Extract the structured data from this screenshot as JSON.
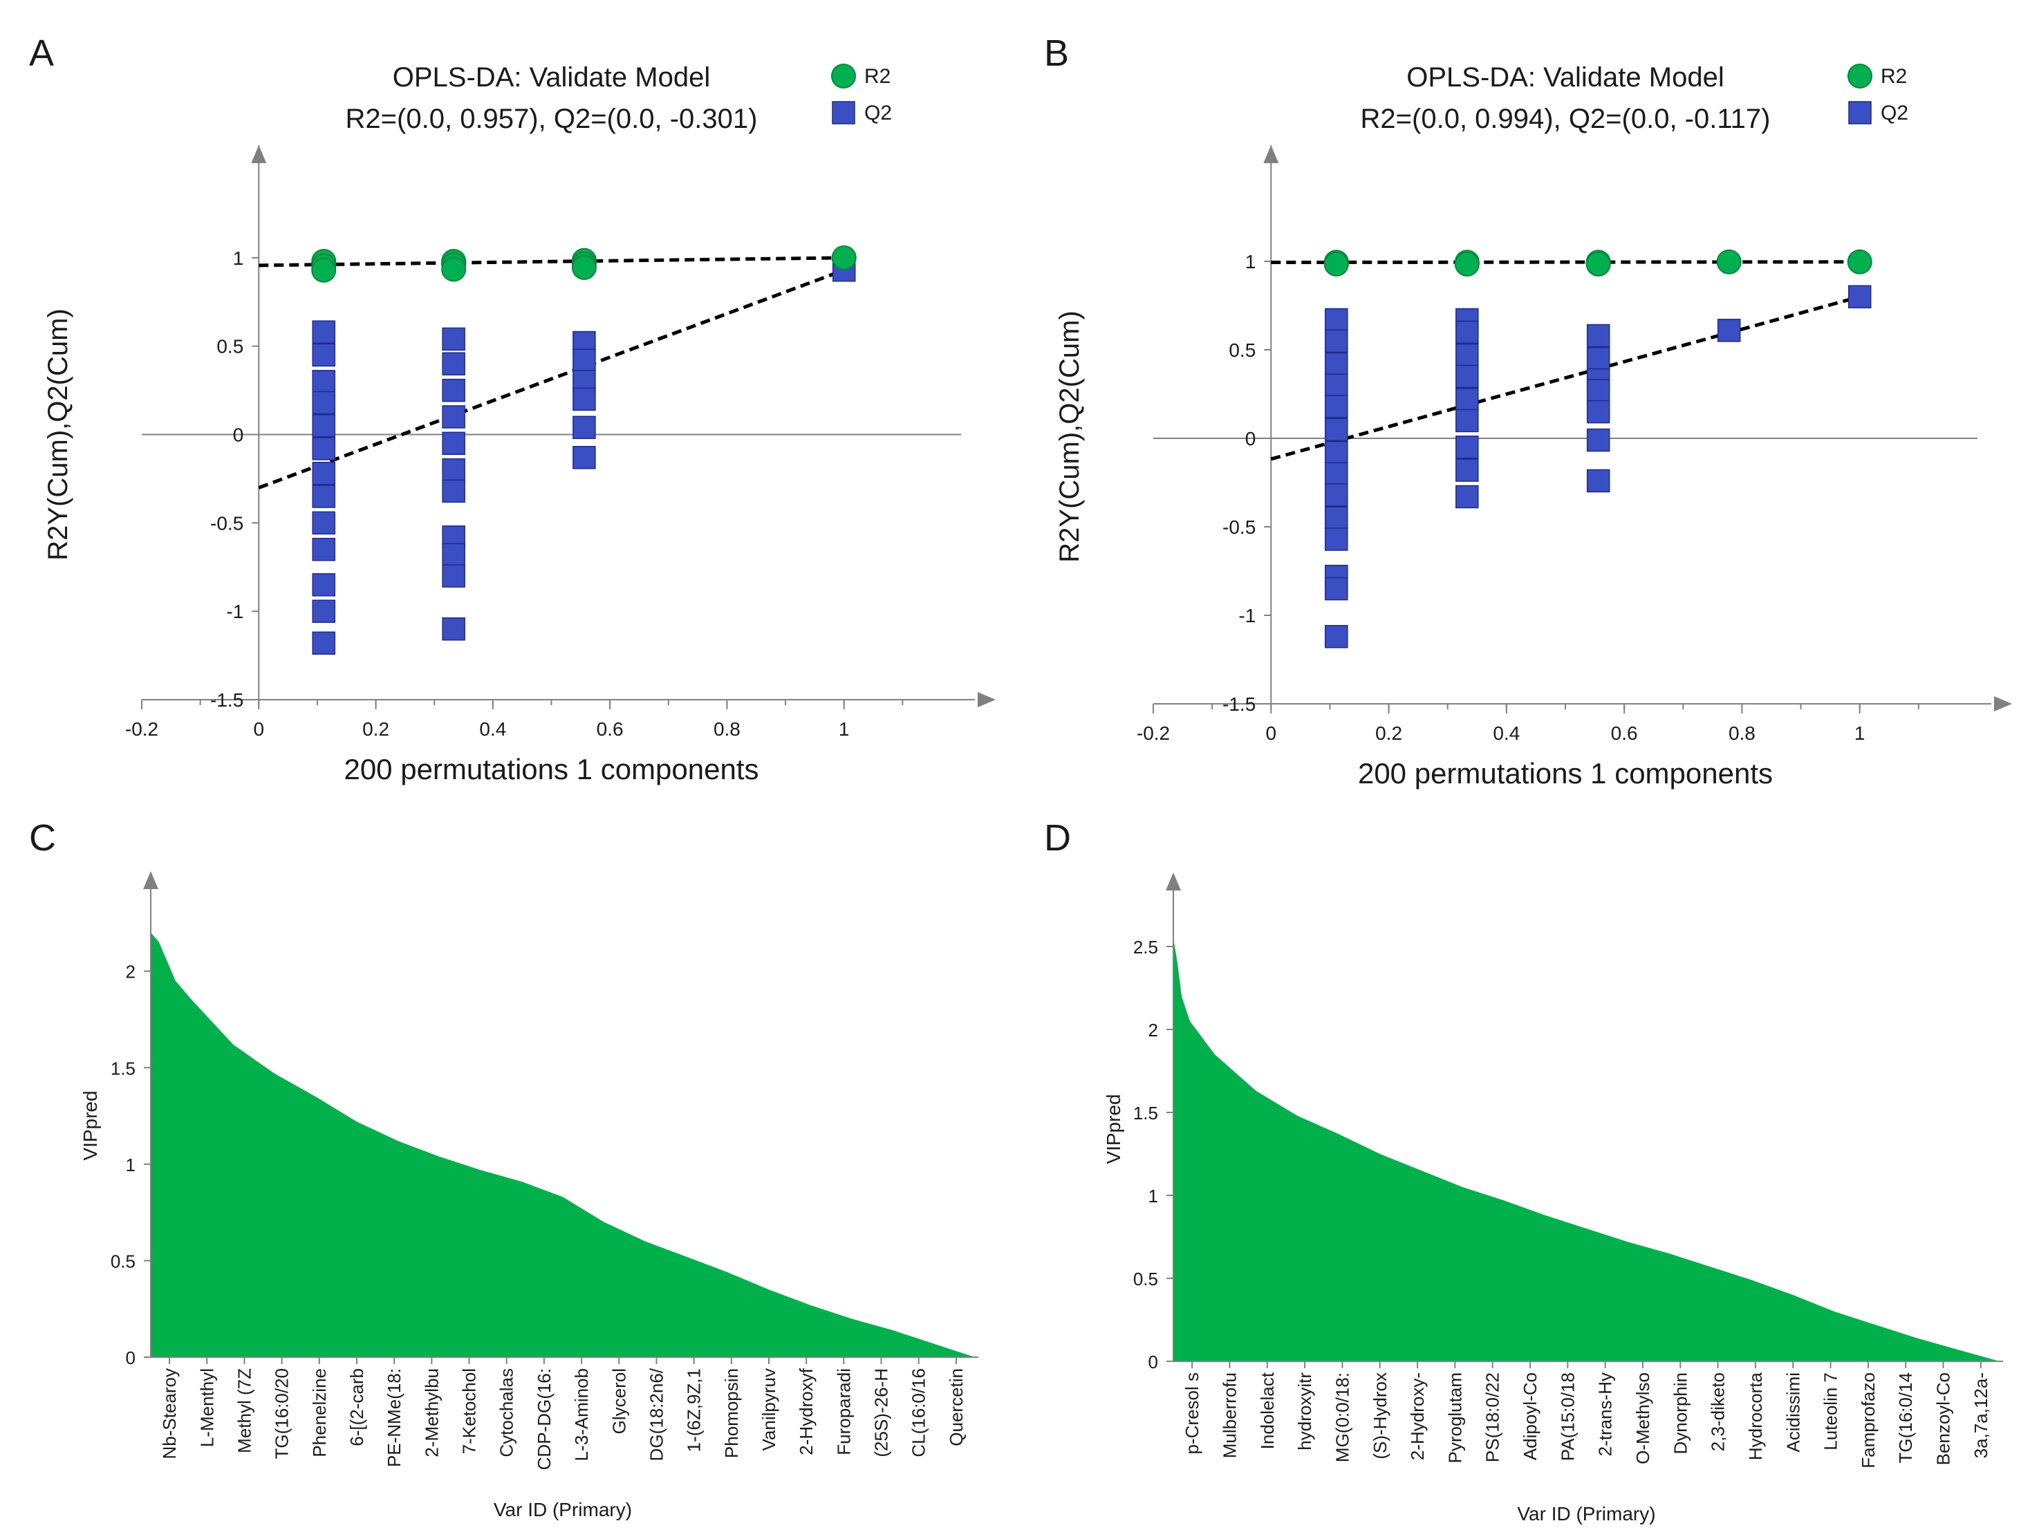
{
  "colors": {
    "r2_green": "#00b050",
    "r2_stroke": "#008a3c",
    "q2_blue": "#3b4fc4",
    "q2_stroke": "#1e2a8a",
    "vip_fill": "#00b04a",
    "axis": "#808080",
    "text": "#1a1a1a"
  },
  "chart_data": [
    {
      "id": "A",
      "panel_label": "A",
      "type": "scatter",
      "title": "OPLS-DA: Validate Model",
      "subtitle": "R2=(0.0, 0.957), Q2=(0.0, -0.301)",
      "xlabel": "200 permutations 1 components",
      "ylabel": "R2Y(Cum),Q2(Cum)",
      "xlim": [
        -0.2,
        1.2
      ],
      "ylim": [
        -1.5,
        1.5
      ],
      "x_ticks": [
        -0.2,
        0,
        0.2,
        0.4,
        0.6,
        0.8,
        1
      ],
      "x_tick_labels": [
        "-0.2",
        "0",
        "0.2",
        "0.4",
        "0.6",
        "0.8",
        "1"
      ],
      "y_ticks": [
        -1.5,
        -1,
        -0.5,
        0,
        0.5,
        1
      ],
      "y_tick_labels": [
        "-1.5",
        "-1",
        "-0.5",
        "0",
        "0.5",
        "1"
      ],
      "legend": {
        "position": "top-right",
        "entries": [
          "R2",
          "Q2"
        ]
      },
      "series": [
        {
          "name": "R2",
          "marker": "circle",
          "points": [
            [
              0.111,
              0.98
            ],
            [
              0.111,
              0.955
            ],
            [
              0.111,
              0.93
            ],
            [
              0.333,
              0.98
            ],
            [
              0.333,
              0.96
            ],
            [
              0.333,
              0.935
            ],
            [
              0.556,
              0.985
            ],
            [
              0.556,
              0.965
            ],
            [
              0.556,
              0.945
            ],
            [
              1.0,
              1.0
            ]
          ]
        },
        {
          "name": "Q2",
          "marker": "square",
          "points": [
            [
              0.111,
              0.58
            ],
            [
              0.111,
              0.45
            ],
            [
              0.111,
              0.3
            ],
            [
              0.111,
              0.18
            ],
            [
              0.111,
              0.05
            ],
            [
              0.111,
              -0.08
            ],
            [
              0.111,
              -0.22
            ],
            [
              0.111,
              -0.35
            ],
            [
              0.111,
              -0.5
            ],
            [
              0.111,
              -0.65
            ],
            [
              0.111,
              -0.85
            ],
            [
              0.111,
              -1.0
            ],
            [
              0.111,
              -1.18
            ],
            [
              0.333,
              0.54
            ],
            [
              0.333,
              0.4
            ],
            [
              0.333,
              0.25
            ],
            [
              0.333,
              0.1
            ],
            [
              0.333,
              -0.05
            ],
            [
              0.333,
              -0.2
            ],
            [
              0.333,
              -0.32
            ],
            [
              0.333,
              -0.58
            ],
            [
              0.333,
              -0.68
            ],
            [
              0.333,
              -0.8
            ],
            [
              0.333,
              -1.1
            ],
            [
              0.556,
              0.52
            ],
            [
              0.556,
              0.42
            ],
            [
              0.556,
              0.3
            ],
            [
              0.556,
              0.2
            ],
            [
              0.556,
              0.04
            ],
            [
              0.556,
              -0.13
            ],
            [
              1.0,
              0.93
            ]
          ]
        }
      ],
      "trend_lines": [
        {
          "name": "R2",
          "from": [
            0,
            0.957
          ],
          "to": [
            1,
            1.0
          ]
        },
        {
          "name": "Q2",
          "from": [
            0,
            -0.301
          ],
          "to": [
            1,
            0.93
          ]
        }
      ]
    },
    {
      "id": "B",
      "panel_label": "B",
      "type": "scatter",
      "title": "OPLS-DA: Validate Model",
      "subtitle": "R2=(0.0, 0.994), Q2=(0.0, -0.117)",
      "xlabel": "200 permutations 1 components",
      "ylabel": "R2Y(Cum),Q2(Cum)",
      "xlim": [
        -0.2,
        1.2
      ],
      "ylim": [
        -1.5,
        1.5
      ],
      "x_ticks": [
        -0.2,
        0,
        0.2,
        0.4,
        0.6,
        0.8,
        1
      ],
      "x_tick_labels": [
        "-0.2",
        "0",
        "0.2",
        "0.4",
        "0.6",
        "0.8",
        "1"
      ],
      "y_ticks": [
        -1.5,
        -1,
        -0.5,
        0,
        0.5,
        1
      ],
      "y_tick_labels": [
        "-1.5",
        "-1",
        "-0.5",
        "0",
        "0.5",
        "1"
      ],
      "legend": {
        "position": "top-right",
        "entries": [
          "R2",
          "Q2"
        ]
      },
      "series": [
        {
          "name": "R2",
          "marker": "circle",
          "points": [
            [
              0.111,
              0.995
            ],
            [
              0.111,
              0.985
            ],
            [
              0.333,
              0.995
            ],
            [
              0.333,
              0.985
            ],
            [
              0.556,
              0.995
            ],
            [
              0.556,
              0.985
            ],
            [
              0.778,
              0.997
            ],
            [
              1.0,
              0.997
            ]
          ]
        },
        {
          "name": "Q2",
          "marker": "square",
          "points": [
            [
              0.111,
              0.67
            ],
            [
              0.111,
              0.55
            ],
            [
              0.111,
              0.42
            ],
            [
              0.111,
              0.3
            ],
            [
              0.111,
              0.18
            ],
            [
              0.111,
              0.05
            ],
            [
              0.111,
              -0.08
            ],
            [
              0.111,
              -0.2
            ],
            [
              0.111,
              -0.32
            ],
            [
              0.111,
              -0.45
            ],
            [
              0.111,
              -0.57
            ],
            [
              0.111,
              -0.78
            ],
            [
              0.111,
              -0.85
            ],
            [
              0.111,
              -1.12
            ],
            [
              0.333,
              0.67
            ],
            [
              0.333,
              0.6
            ],
            [
              0.333,
              0.47
            ],
            [
              0.333,
              0.35
            ],
            [
              0.333,
              0.22
            ],
            [
              0.333,
              0.1
            ],
            [
              0.333,
              -0.05
            ],
            [
              0.333,
              -0.18
            ],
            [
              0.333,
              -0.33
            ],
            [
              0.556,
              0.58
            ],
            [
              0.556,
              0.45
            ],
            [
              0.556,
              0.33
            ],
            [
              0.556,
              0.27
            ],
            [
              0.556,
              0.15
            ],
            [
              0.556,
              -0.01
            ],
            [
              0.556,
              -0.24
            ],
            [
              0.778,
              0.61
            ],
            [
              1.0,
              0.8
            ]
          ]
        }
      ],
      "trend_lines": [
        {
          "name": "R2",
          "from": [
            0,
            0.994
          ],
          "to": [
            1,
            0.997
          ]
        },
        {
          "name": "Q2",
          "from": [
            0,
            -0.117
          ],
          "to": [
            1,
            0.8
          ]
        }
      ]
    },
    {
      "id": "C",
      "panel_label": "C",
      "type": "area",
      "title": "",
      "xlabel": "Var ID (Primary)",
      "ylabel": "VIPpred",
      "ylim": [
        0,
        2.4
      ],
      "y_ticks": [
        0,
        0.5,
        1,
        1.5,
        2
      ],
      "y_tick_labels": [
        "0",
        "0.5",
        "1",
        "1.5",
        "2"
      ],
      "categories": [
        "Nb-Stearoy",
        "L-Menthyl",
        "Methyl (7Z",
        "TG(16:0/20",
        "Phenelzine",
        "6-[(2-carb",
        "PE-NMe(18:",
        "2-Methylbu",
        "7-Ketochol",
        "Cytochalas",
        "CDP-DG(16:",
        "L-3-Aminob",
        "Glycerol",
        "DG(18:2n6/",
        "1-(6Z,9Z,1",
        "Phomopsin",
        "Vanilpyruv",
        "2-Hydroxyf",
        "Furoparadi",
        "(25S)-26-H",
        "CL(16:0/16",
        "Quercetin"
      ],
      "profile": [
        [
          0,
          2.2
        ],
        [
          0.01,
          2.15
        ],
        [
          0.03,
          1.95
        ],
        [
          0.05,
          1.85
        ],
        [
          0.1,
          1.62
        ],
        [
          0.15,
          1.47
        ],
        [
          0.2,
          1.35
        ],
        [
          0.25,
          1.22
        ],
        [
          0.3,
          1.12
        ],
        [
          0.35,
          1.04
        ],
        [
          0.4,
          0.97
        ],
        [
          0.45,
          0.91
        ],
        [
          0.5,
          0.83
        ],
        [
          0.55,
          0.7
        ],
        [
          0.6,
          0.6
        ],
        [
          0.65,
          0.52
        ],
        [
          0.7,
          0.44
        ],
        [
          0.75,
          0.35
        ],
        [
          0.8,
          0.27
        ],
        [
          0.85,
          0.2
        ],
        [
          0.9,
          0.14
        ],
        [
          0.95,
          0.07
        ],
        [
          1.0,
          0.0
        ]
      ]
    },
    {
      "id": "D",
      "panel_label": "D",
      "type": "area",
      "title": "",
      "xlabel": "Var ID (Primary)",
      "ylabel": "VIPpred",
      "ylim": [
        0,
        2.8
      ],
      "y_ticks": [
        0,
        0.5,
        1,
        1.5,
        2,
        2.5
      ],
      "y_tick_labels": [
        "0",
        "0.5",
        "1",
        "1.5",
        "2",
        "2.5"
      ],
      "categories": [
        "p-Cresol s",
        "Mulberrofu",
        "Indolelact",
        "hydroxyitr",
        "MG(0:0/18:",
        "(S)-Hydrox",
        "2-Hydroxy-",
        "Pyroglutam",
        "PS(18:0/22",
        "Adipoyl-Co",
        "PA(15:0/18",
        "2-trans-Hy",
        "O-Methylso",
        "Dynorphin",
        "2,3-diketo",
        "Hydrocorta",
        "Acidissimi",
        "Luteolin 7",
        "Famprofazo",
        "TG(16:0/14",
        "Benzoyl-Co",
        "3a,7a,12a-"
      ],
      "profile": [
        [
          0,
          2.55
        ],
        [
          0.005,
          2.4
        ],
        [
          0.01,
          2.2
        ],
        [
          0.02,
          2.05
        ],
        [
          0.05,
          1.85
        ],
        [
          0.1,
          1.63
        ],
        [
          0.15,
          1.48
        ],
        [
          0.2,
          1.37
        ],
        [
          0.25,
          1.25
        ],
        [
          0.3,
          1.15
        ],
        [
          0.35,
          1.05
        ],
        [
          0.4,
          0.97
        ],
        [
          0.45,
          0.88
        ],
        [
          0.5,
          0.8
        ],
        [
          0.55,
          0.72
        ],
        [
          0.6,
          0.65
        ],
        [
          0.65,
          0.57
        ],
        [
          0.7,
          0.49
        ],
        [
          0.75,
          0.4
        ],
        [
          0.8,
          0.3
        ],
        [
          0.85,
          0.22
        ],
        [
          0.9,
          0.14
        ],
        [
          0.95,
          0.07
        ],
        [
          1.0,
          0.0
        ]
      ]
    }
  ]
}
